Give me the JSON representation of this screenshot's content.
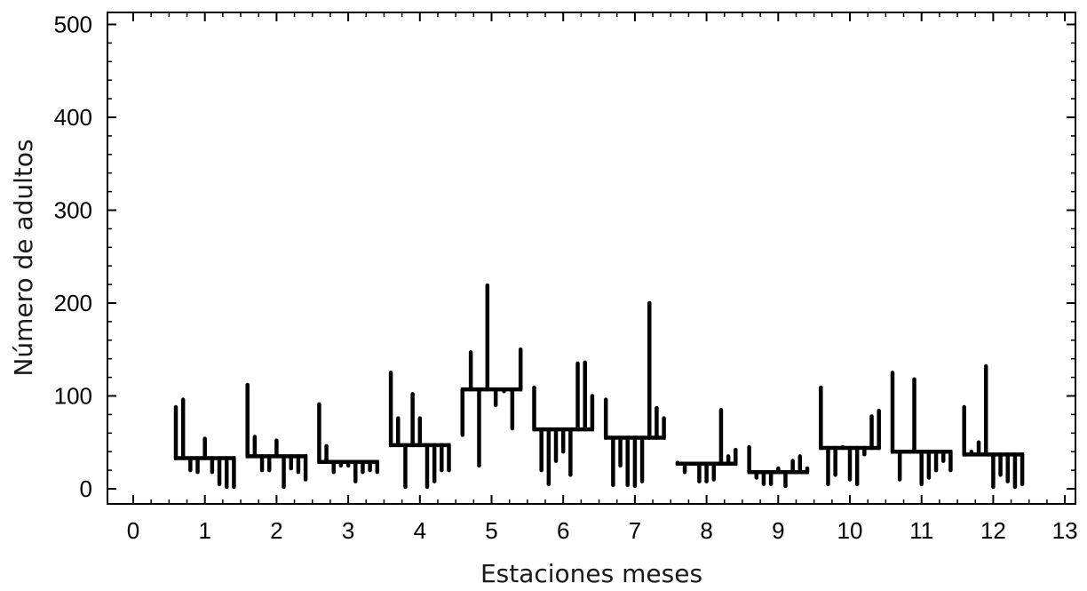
{
  "chart_data": {
    "type": "bar",
    "subtype": "monthly-mean-with-deviation-lines",
    "title": "",
    "xlabel": "Estaciones meses",
    "ylabel": "Número de adultos",
    "xlim": [
      0,
      13
    ],
    "ylim": [
      -15,
      510
    ],
    "xticks": [
      0,
      1,
      2,
      3,
      4,
      5,
      6,
      7,
      8,
      9,
      10,
      11,
      12,
      13
    ],
    "yticks": [
      0,
      100,
      200,
      300,
      400,
      500
    ],
    "grid": false,
    "legend": "none",
    "months": [
      {
        "month": "1",
        "mean": 33,
        "values": [
          88,
          96,
          20,
          18,
          54,
          18,
          5,
          2,
          2
        ]
      },
      {
        "month": "2",
        "mean": 35,
        "values": [
          112,
          56,
          20,
          20,
          52,
          2,
          22,
          18,
          10
        ]
      },
      {
        "month": "3",
        "mean": 29,
        "values": [
          91,
          46,
          18,
          25,
          25,
          8,
          18,
          20,
          18
        ]
      },
      {
        "month": "4",
        "mean": 47,
        "values": [
          125,
          76,
          2,
          102,
          76,
          2,
          8,
          20,
          20
        ]
      },
      {
        "month": "5",
        "mean": 107,
        "values": [
          58,
          147,
          25,
          219,
          90,
          105,
          65,
          150
        ]
      },
      {
        "month": "6",
        "mean": 64,
        "values": [
          109,
          20,
          5,
          30,
          40,
          15,
          135,
          136,
          100
        ]
      },
      {
        "month": "7",
        "mean": 55,
        "values": [
          96,
          4,
          25,
          4,
          3,
          8,
          200,
          87,
          76
        ]
      },
      {
        "month": "8",
        "mean": 27,
        "values": [
          28,
          18,
          27,
          8,
          8,
          10,
          85,
          35,
          42
        ]
      },
      {
        "month": "9",
        "mean": 18,
        "values": [
          45,
          12,
          5,
          5,
          22,
          3,
          30,
          35,
          22
        ]
      },
      {
        "month": "10",
        "mean": 44,
        "values": [
          109,
          5,
          15,
          45,
          10,
          5,
          37,
          78,
          84
        ]
      },
      {
        "month": "11",
        "mean": 40,
        "values": [
          125,
          10,
          40,
          118,
          5,
          12,
          20,
          30,
          20
        ]
      },
      {
        "month": "12",
        "mean": 37,
        "values": [
          88,
          40,
          50,
          132,
          2,
          15,
          8,
          2,
          5
        ]
      }
    ]
  }
}
